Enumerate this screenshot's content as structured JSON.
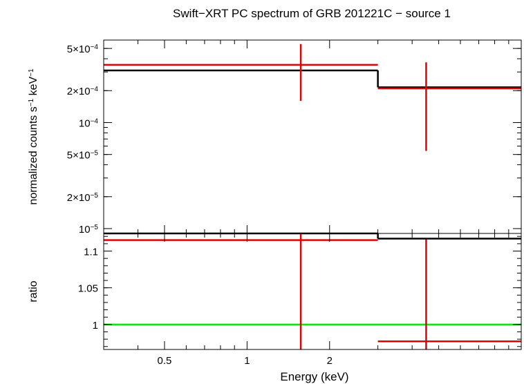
{
  "chart_data": {
    "type": "step-spectrum",
    "title": "Swift−XRT PC spectrum of GRB 201221C − source 1",
    "xlabel": "Energy (keV)",
    "x_scale": "log",
    "xlim": [
      0.3,
      10
    ],
    "x_ticks": [
      {
        "value": 0.5,
        "label": "0.5"
      },
      {
        "value": 1,
        "label": "1"
      },
      {
        "value": 2,
        "label": "2"
      }
    ],
    "colors": {
      "data": "#e00000",
      "model": "#000000",
      "unity": "#00ee00",
      "axes": "#000000"
    },
    "top_panel": {
      "ylabel_main": "normalized counts s",
      "ylabel_exp1": "−1",
      "ylabel_mid": " keV",
      "ylabel_exp2": "−1",
      "y_scale": "log",
      "ylim": [
        9e-06,
        0.0006
      ],
      "y_ticks": [
        {
          "value": 0.0005,
          "mant": "5×10",
          "exp": "−4"
        },
        {
          "value": 0.0002,
          "mant": "2×10",
          "exp": "−4"
        },
        {
          "value": 0.0001,
          "mant": "10",
          "exp": "−4"
        },
        {
          "value": 5e-05,
          "mant": "5×10",
          "exp": "−5"
        },
        {
          "value": 2e-05,
          "mant": "2×10",
          "exp": "−5"
        },
        {
          "value": 1e-05,
          "mant": "10",
          "exp": "−5"
        }
      ],
      "data": [
        {
          "x": 1.57,
          "xlo": 0.3,
          "xhi": 3.0,
          "y": 0.00035,
          "ylo": 0.00016,
          "yhi": 0.00055
        },
        {
          "x": 4.5,
          "xlo": 3.0,
          "xhi": 10,
          "y": 0.00021,
          "ylo": 5.4e-05,
          "yhi": 0.00037
        }
      ],
      "model": [
        {
          "xlo": 0.3,
          "xhi": 3.0,
          "y": 0.00031
        },
        {
          "xlo": 3.0,
          "xhi": 10,
          "y": 0.000215
        }
      ]
    },
    "bottom_panel": {
      "ylabel": "ratio",
      "y_scale": "linear",
      "ylim": [
        0.966,
        1.124
      ],
      "y_ticks": [
        {
          "value": 1.1,
          "label": "1.1"
        },
        {
          "value": 1.05,
          "label": "1.05"
        },
        {
          "value": 1,
          "label": "1"
        }
      ],
      "unity": 1,
      "data": [
        {
          "x": 1.57,
          "xlo": 0.3,
          "xhi": 3.0,
          "y": 1.115,
          "ylo": 0.966,
          "yhi": 1.124
        },
        {
          "x": 4.5,
          "xlo": 3.0,
          "xhi": 10,
          "y": 0.977,
          "ylo": 0.966,
          "yhi": 1.116
        }
      ],
      "model_top": [
        {
          "xlo": 0.3,
          "xhi": 3.0,
          "y": 1.124
        },
        {
          "xlo": 3.0,
          "xhi": 10,
          "y": 1.117
        }
      ]
    }
  }
}
